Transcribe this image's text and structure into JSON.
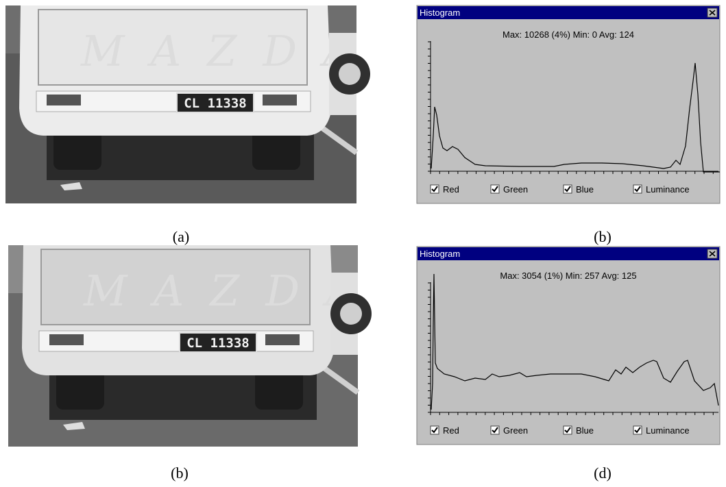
{
  "panels": [
    {
      "photo": {
        "brand": "MAZDA",
        "plate": "CL 11338"
      },
      "photo_caption": "(a)",
      "histogram": {
        "title": "Histogram",
        "stats": "Max: 10268 (4%)  Min: 0   Avg: 124",
        "checkboxes": [
          "Red",
          "Green",
          "Blue",
          "Luminance"
        ]
      },
      "histogram_caption": "(b)"
    },
    {
      "photo": {
        "brand": "MAZDA",
        "plate": "CL 11338"
      },
      "photo_caption": "(b)",
      "histogram": {
        "title": "Histogram",
        "stats": "Max: 3054 (1%)  Min: 257   Avg: 125",
        "checkboxes": [
          "Red",
          "Green",
          "Blue",
          "Luminance"
        ]
      },
      "histogram_caption": "(d)"
    }
  ]
}
